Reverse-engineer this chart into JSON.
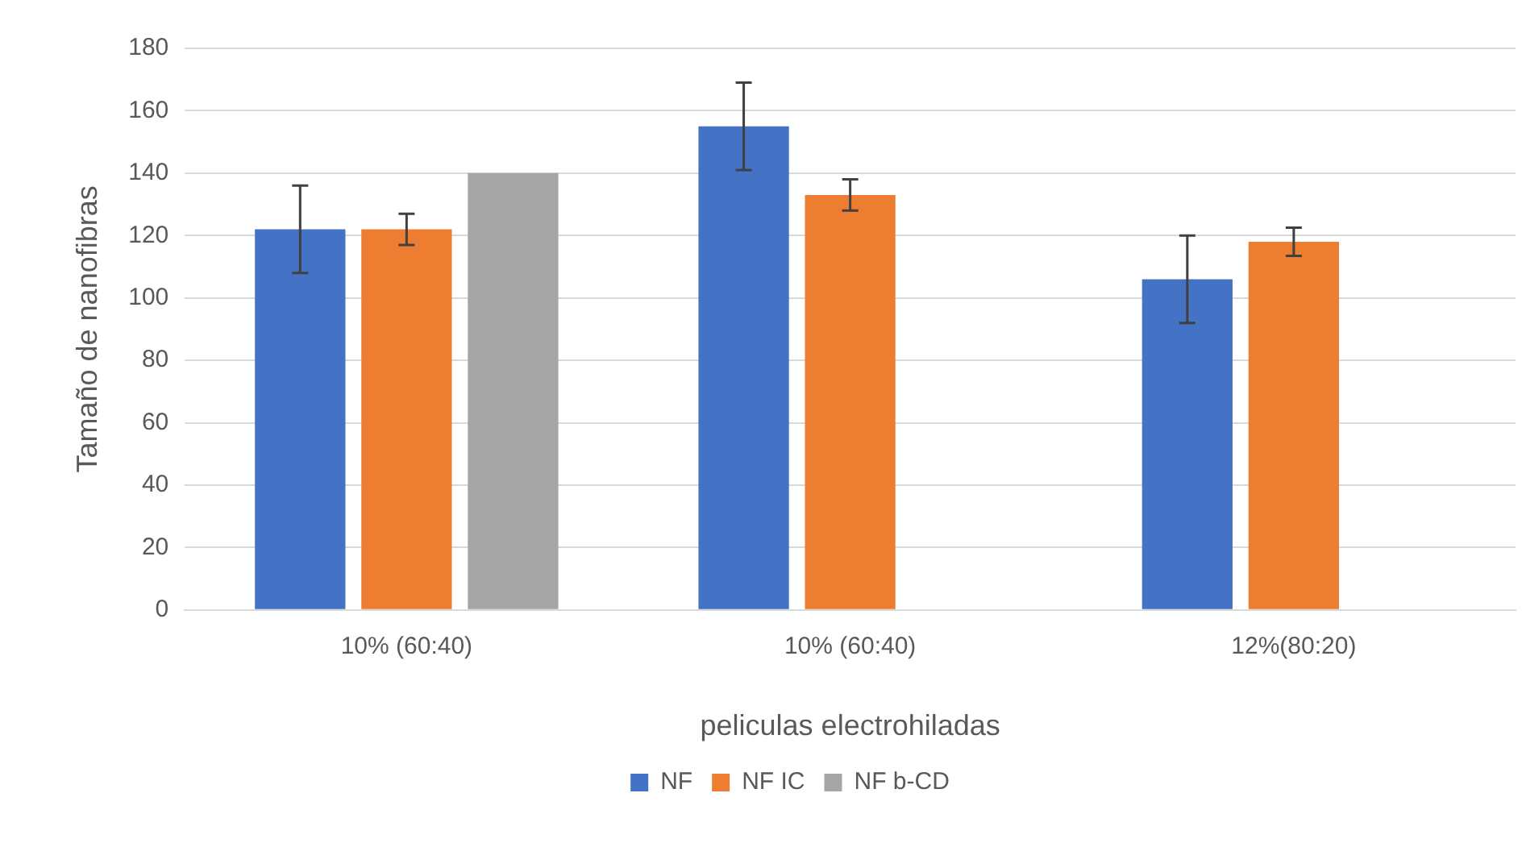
{
  "chart_data": {
    "type": "bar",
    "xlabel": "peliculas electrohiladas",
    "ylabel": "Tamaño de nanofibras",
    "categories": [
      "10% (60:40)",
      "10% (60:40)",
      "12%(80:20)"
    ],
    "series": [
      {
        "name": "NF",
        "color": "#4472c4",
        "values": [
          122,
          155,
          106
        ],
        "errors": [
          14,
          14,
          14
        ]
      },
      {
        "name": "NF IC",
        "color": "#ed7d31",
        "values": [
          122,
          133,
          118
        ],
        "errors": [
          5,
          5,
          4.5
        ]
      },
      {
        "name": "NF b-CD",
        "color": "#a5a5a5",
        "values": [
          140,
          null,
          null
        ]
      }
    ],
    "ylim": [
      0,
      180
    ],
    "yticks": [
      0,
      20,
      40,
      60,
      80,
      100,
      120,
      140,
      160,
      180
    ],
    "grid": "y",
    "legend": "bottom"
  }
}
